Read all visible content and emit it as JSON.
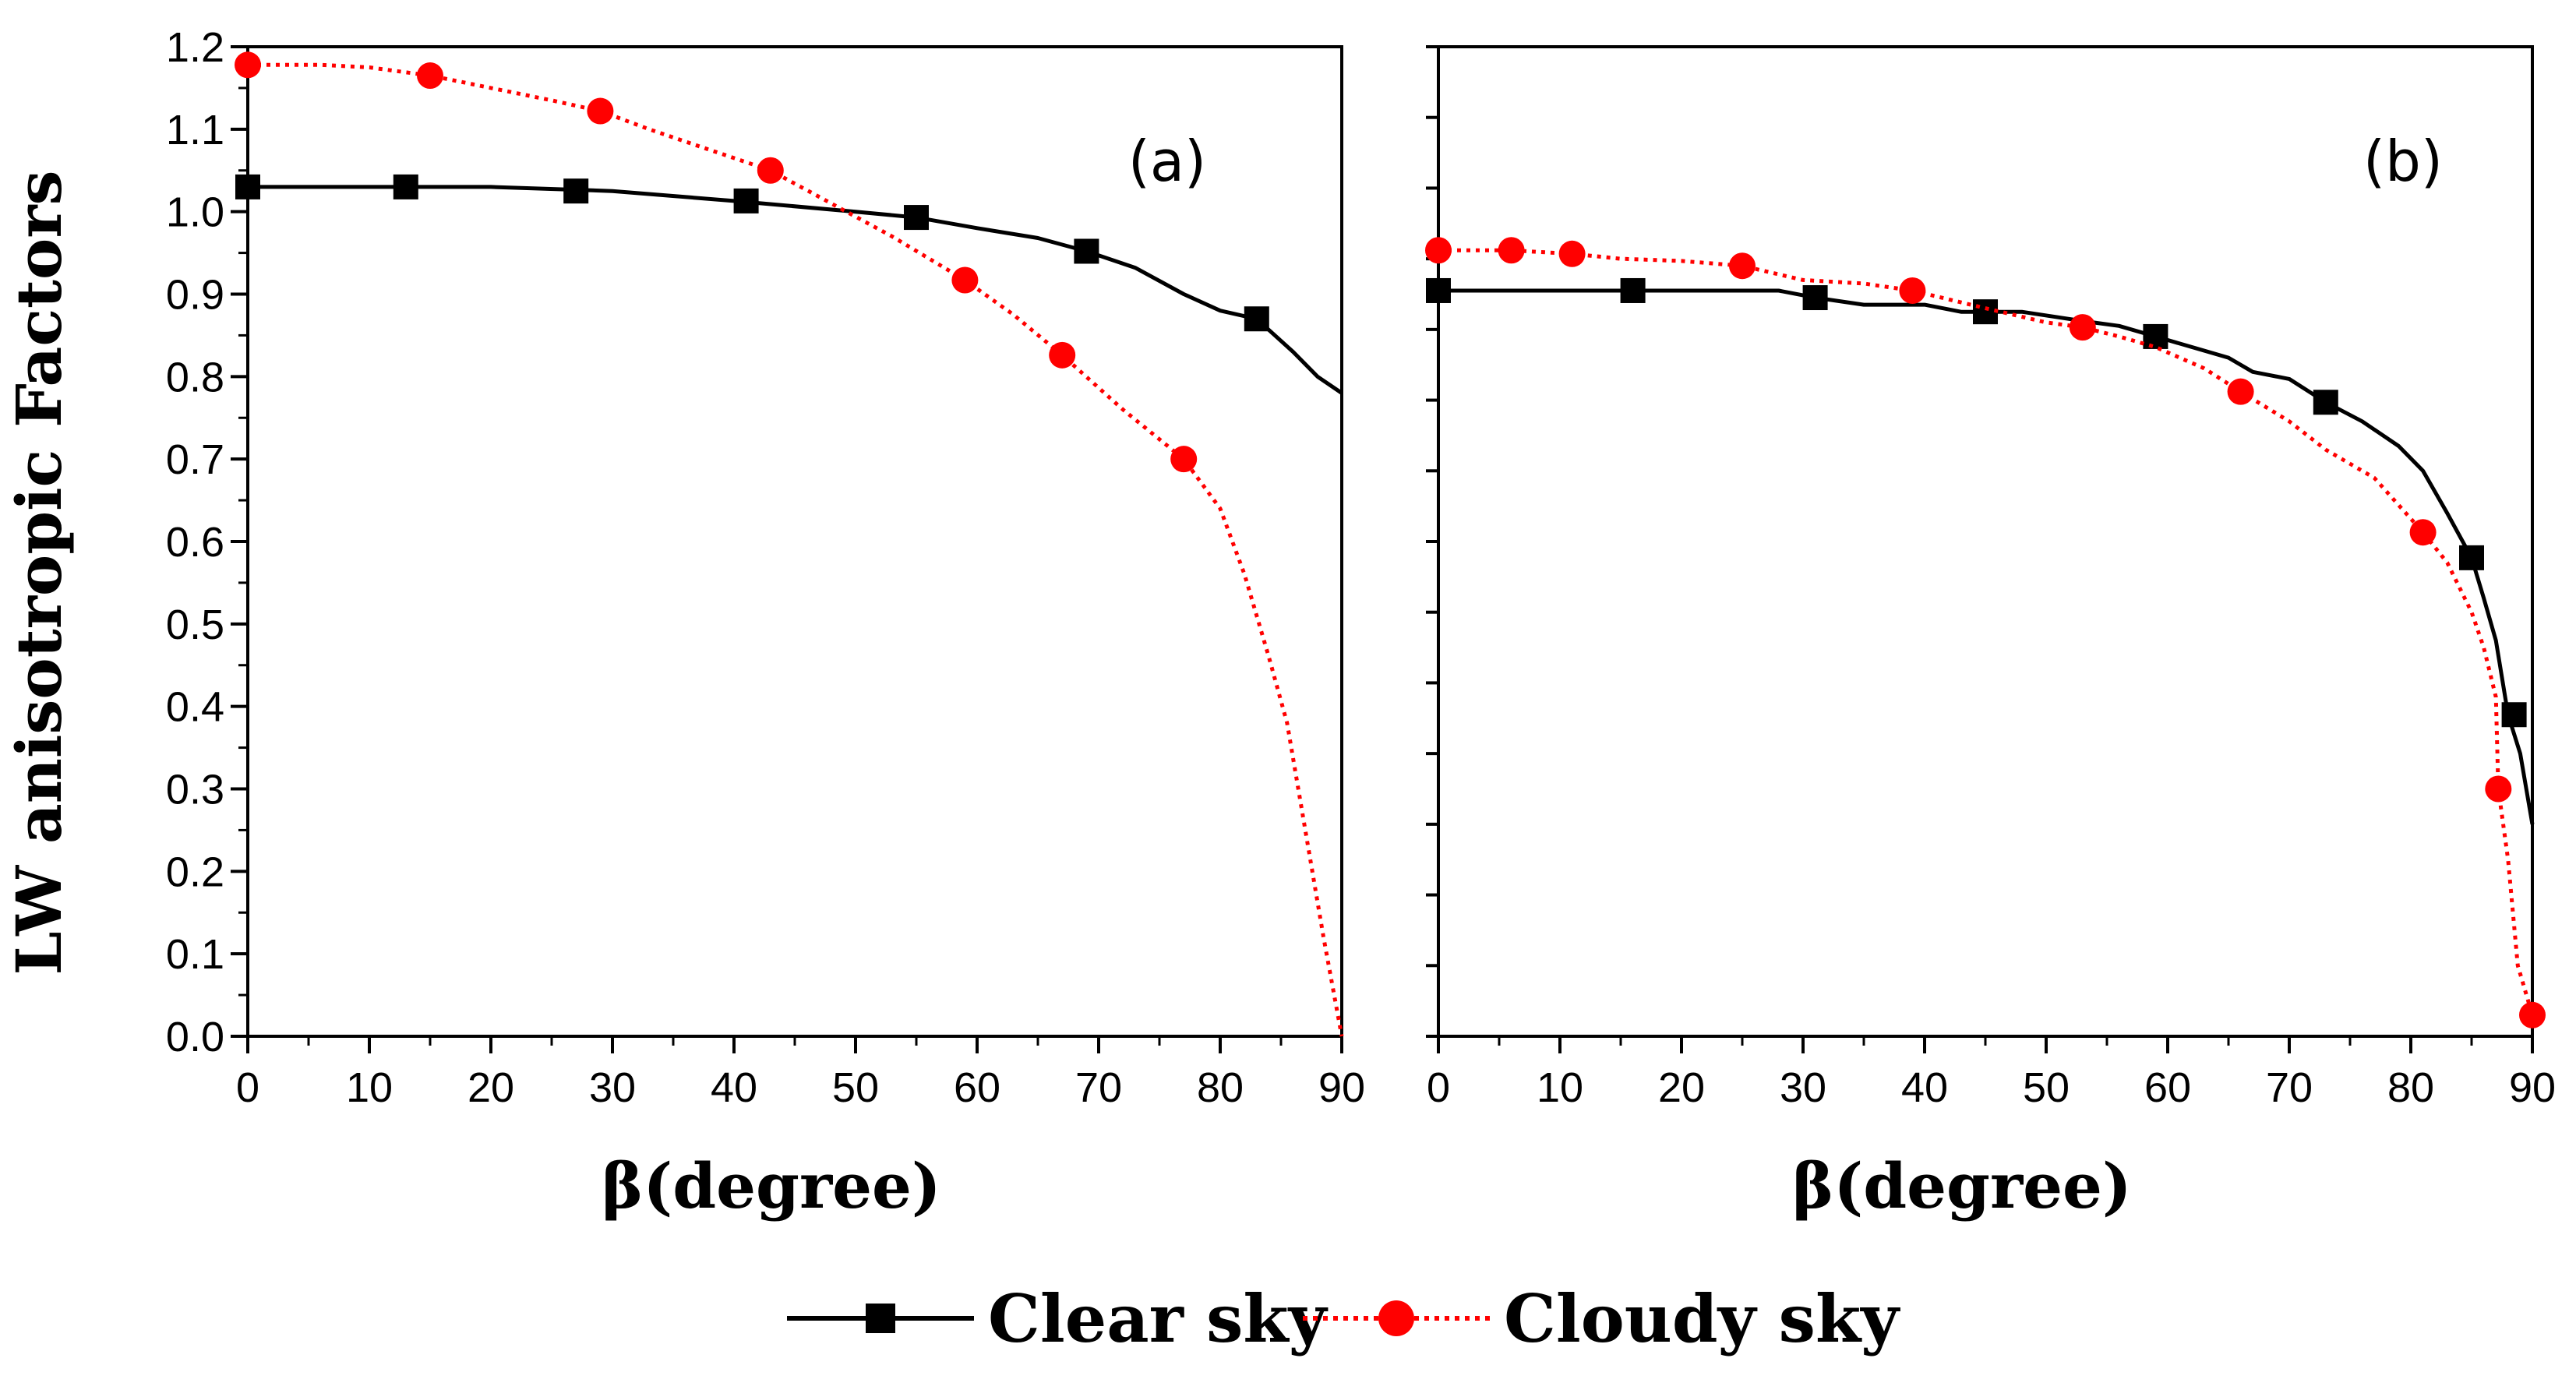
{
  "chart_data": [
    {
      "type": "line",
      "panel_label": "(a)",
      "xlabel": "β(degree)",
      "ylabel": "LW anisotropic Factors",
      "xlim": [
        0,
        90
      ],
      "ylim": [
        0.0,
        1.2
      ],
      "x_ticks": [
        "0",
        "10",
        "20",
        "30",
        "40",
        "50",
        "60",
        "70",
        "80",
        "90"
      ],
      "y_ticks": [
        "0.0",
        "0.1",
        "0.2",
        "0.3",
        "0.4",
        "0.5",
        "0.6",
        "0.7",
        "0.8",
        "0.9",
        "1.0",
        "1.1",
        "1.2"
      ],
      "series": [
        {
          "name": "Clear sky",
          "color": "#000000",
          "line_style": "solid",
          "marker": "square",
          "curve": [
            [
              0,
              1.03
            ],
            [
              10,
              1.03
            ],
            [
              20,
              1.03
            ],
            [
              30,
              1.025
            ],
            [
              40,
              1.013
            ],
            [
              50,
              1.0
            ],
            [
              55,
              0.993
            ],
            [
              60,
              0.98
            ],
            [
              65,
              0.968
            ],
            [
              69,
              0.952
            ],
            [
              73,
              0.932
            ],
            [
              77,
              0.9
            ],
            [
              80,
              0.88
            ],
            [
              83,
              0.87
            ],
            [
              86,
              0.83
            ],
            [
              88,
              0.8
            ],
            [
              90,
              0.78
            ]
          ],
          "markers": [
            [
              0,
              1.03
            ],
            [
              13,
              1.03
            ],
            [
              27,
              1.025
            ],
            [
              41,
              1.013
            ],
            [
              55,
              0.993
            ],
            [
              69,
              0.952
            ],
            [
              83,
              0.87
            ]
          ]
        },
        {
          "name": "Cloudy sky",
          "color": "#ff0000",
          "line_style": "dotted",
          "marker": "circle",
          "curve": [
            [
              0,
              1.178
            ],
            [
              6,
              1.178
            ],
            [
              10,
              1.175
            ],
            [
              15,
              1.165
            ],
            [
              20,
              1.15
            ],
            [
              25,
              1.135
            ],
            [
              29,
              1.122
            ],
            [
              33,
              1.1
            ],
            [
              38,
              1.075
            ],
            [
              43,
              1.05
            ],
            [
              48,
              1.01
            ],
            [
              53,
              0.97
            ],
            [
              59,
              0.917
            ],
            [
              63,
              0.875
            ],
            [
              67,
              0.826
            ],
            [
              72,
              0.76
            ],
            [
              77,
              0.7
            ],
            [
              80,
              0.64
            ],
            [
              82,
              0.56
            ],
            [
              84,
              0.46
            ],
            [
              85.5,
              0.38
            ],
            [
              87,
              0.25
            ],
            [
              88.5,
              0.12
            ],
            [
              90,
              0.0
            ]
          ],
          "markers": [
            [
              0,
              1.178
            ],
            [
              15,
              1.165
            ],
            [
              29,
              1.122
            ],
            [
              43,
              1.05
            ],
            [
              59,
              0.917
            ],
            [
              67,
              0.826
            ],
            [
              77,
              0.7
            ]
          ]
        }
      ]
    },
    {
      "type": "line",
      "panel_label": "(b)",
      "xlabel": "β(degree)",
      "ylabel": "",
      "xlim": [
        0,
        90
      ],
      "ylim": [
        0.0,
        1.4
      ],
      "x_ticks": [
        "0",
        "10",
        "20",
        "30",
        "40",
        "50",
        "60",
        "70",
        "80",
        "90"
      ],
      "y_ticks": [],
      "series": [
        {
          "name": "Clear sky",
          "color": "#000000",
          "line_style": "solid",
          "marker": "square",
          "curve": [
            [
              0,
              1.055
            ],
            [
              16,
              1.055
            ],
            [
              28,
              1.055
            ],
            [
              31,
              1.045
            ],
            [
              35,
              1.035
            ],
            [
              40,
              1.035
            ],
            [
              43,
              1.025
            ],
            [
              48,
              1.025
            ],
            [
              53,
              1.012
            ],
            [
              56,
              1.005
            ],
            [
              59,
              0.99
            ],
            [
              62,
              0.975
            ],
            [
              65,
              0.96
            ],
            [
              67,
              0.94
            ],
            [
              70,
              0.93
            ],
            [
              73,
              0.897
            ],
            [
              76,
              0.87
            ],
            [
              79,
              0.835
            ],
            [
              81,
              0.8
            ],
            [
              83,
              0.74
            ],
            [
              85,
              0.677
            ],
            [
              86,
              0.62
            ],
            [
              87,
              0.56
            ],
            [
              88,
              0.455
            ],
            [
              89,
              0.4
            ],
            [
              90,
              0.3
            ]
          ],
          "markers": [
            [
              0,
              1.055
            ],
            [
              16,
              1.055
            ],
            [
              31,
              1.045
            ],
            [
              45,
              1.025
            ],
            [
              59,
              0.99
            ],
            [
              73,
              0.897
            ],
            [
              85,
              0.677
            ],
            [
              88.5,
              0.455
            ]
          ]
        },
        {
          "name": "Cloudy sky",
          "color": "#ff0000",
          "line_style": "dotted",
          "marker": "circle",
          "curve": [
            [
              0,
              1.112
            ],
            [
              6,
              1.112
            ],
            [
              11,
              1.107
            ],
            [
              15,
              1.1
            ],
            [
              20,
              1.097
            ],
            [
              25,
              1.09
            ],
            [
              30,
              1.07
            ],
            [
              35,
              1.065
            ],
            [
              39,
              1.055
            ],
            [
              45,
              1.03
            ],
            [
              50,
              1.01
            ],
            [
              53,
              1.003
            ],
            [
              56,
              0.99
            ],
            [
              59,
              0.975
            ],
            [
              63,
              0.945
            ],
            [
              66,
              0.912
            ],
            [
              70,
              0.87
            ],
            [
              73,
              0.83
            ],
            [
              77,
              0.79
            ],
            [
              81,
              0.713
            ],
            [
              83,
              0.67
            ],
            [
              85,
              0.6
            ],
            [
              86,
              0.55
            ],
            [
              87,
              0.48
            ],
            [
              87.2,
              0.35
            ],
            [
              88,
              0.25
            ],
            [
              88.8,
              0.1
            ],
            [
              90,
              0.03
            ]
          ],
          "markers": [
            [
              0,
              1.112
            ],
            [
              6,
              1.112
            ],
            [
              11,
              1.107
            ],
            [
              25,
              1.09
            ],
            [
              39,
              1.055
            ],
            [
              53,
              1.003
            ],
            [
              66,
              0.912
            ],
            [
              81,
              0.713
            ],
            [
              87.2,
              0.35
            ],
            [
              90,
              0.03
            ]
          ]
        }
      ]
    }
  ],
  "legend": {
    "position": "bottom-center",
    "items": [
      {
        "label": "Clear sky",
        "color": "#000000",
        "marker": "square",
        "line_style": "solid"
      },
      {
        "label": "Cloudy sky",
        "color": "#ff0000",
        "marker": "circle",
        "line_style": "dotted"
      }
    ]
  }
}
